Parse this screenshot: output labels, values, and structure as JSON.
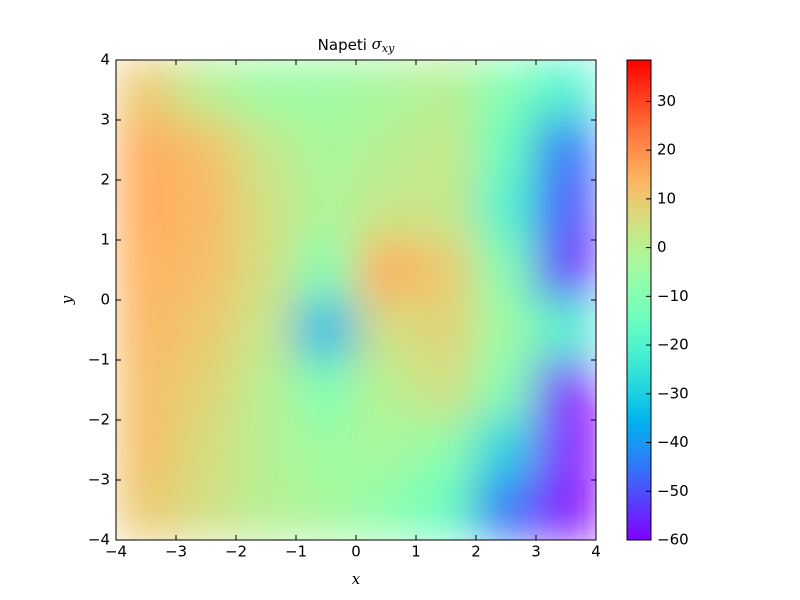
{
  "chart_data": {
    "type": "heatmap",
    "title": "Napeti",
    "title_symbol": "σ",
    "title_subscript": "xy",
    "x_label": "x",
    "y_label": "y",
    "x": [
      -3.5,
      -2.5,
      -1.5,
      -0.5,
      0.5,
      1.5,
      2.5,
      3.5
    ],
    "y": [
      3.5,
      2.5,
      1.5,
      0.5,
      -0.5,
      -1.5,
      -2.5,
      -3.5
    ],
    "z": [
      [
        10,
        0,
        -5,
        -5,
        -3,
        0,
        -10,
        -20
      ],
      [
        15,
        12,
        3,
        -3,
        0,
        3,
        -15,
        -45
      ],
      [
        15,
        13,
        5,
        -2,
        3,
        3,
        -20,
        -50
      ],
      [
        14,
        12,
        5,
        -10,
        15,
        10,
        -10,
        -55
      ],
      [
        13,
        10,
        3,
        -35,
        5,
        8,
        -5,
        -20
      ],
      [
        12,
        8,
        0,
        -10,
        0,
        5,
        -10,
        -60
      ],
      [
        12,
        6,
        0,
        -5,
        -3,
        -8,
        -30,
        -60
      ],
      [
        10,
        5,
        0,
        -3,
        -8,
        -15,
        -45,
        -60
      ]
    ],
    "colormap": "rainbow",
    "xlim": [
      -4,
      4
    ],
    "ylim": [
      -4,
      4
    ],
    "xticks": [
      {
        "value": -4,
        "label": "−4"
      },
      {
        "value": -3,
        "label": "−3"
      },
      {
        "value": -2,
        "label": "−2"
      },
      {
        "value": -1,
        "label": "−1"
      },
      0,
      1,
      2,
      3,
      4
    ],
    "yticks": [
      {
        "value": -4,
        "label": "−4"
      },
      {
        "value": -3,
        "label": "−3"
      },
      {
        "value": -2,
        "label": "−2"
      },
      {
        "value": -1,
        "label": "−1"
      },
      0,
      1,
      2,
      3,
      4
    ],
    "clim": [
      -60,
      38.5
    ],
    "cticks": [
      {
        "value": -60,
        "label": "−60"
      },
      {
        "value": -50,
        "label": "−50"
      },
      {
        "value": -40,
        "label": "−40"
      },
      {
        "value": -30,
        "label": "−30"
      },
      {
        "value": -20,
        "label": "−20"
      },
      {
        "value": -10,
        "label": "−10"
      },
      0,
      10,
      20,
      30
    ]
  }
}
